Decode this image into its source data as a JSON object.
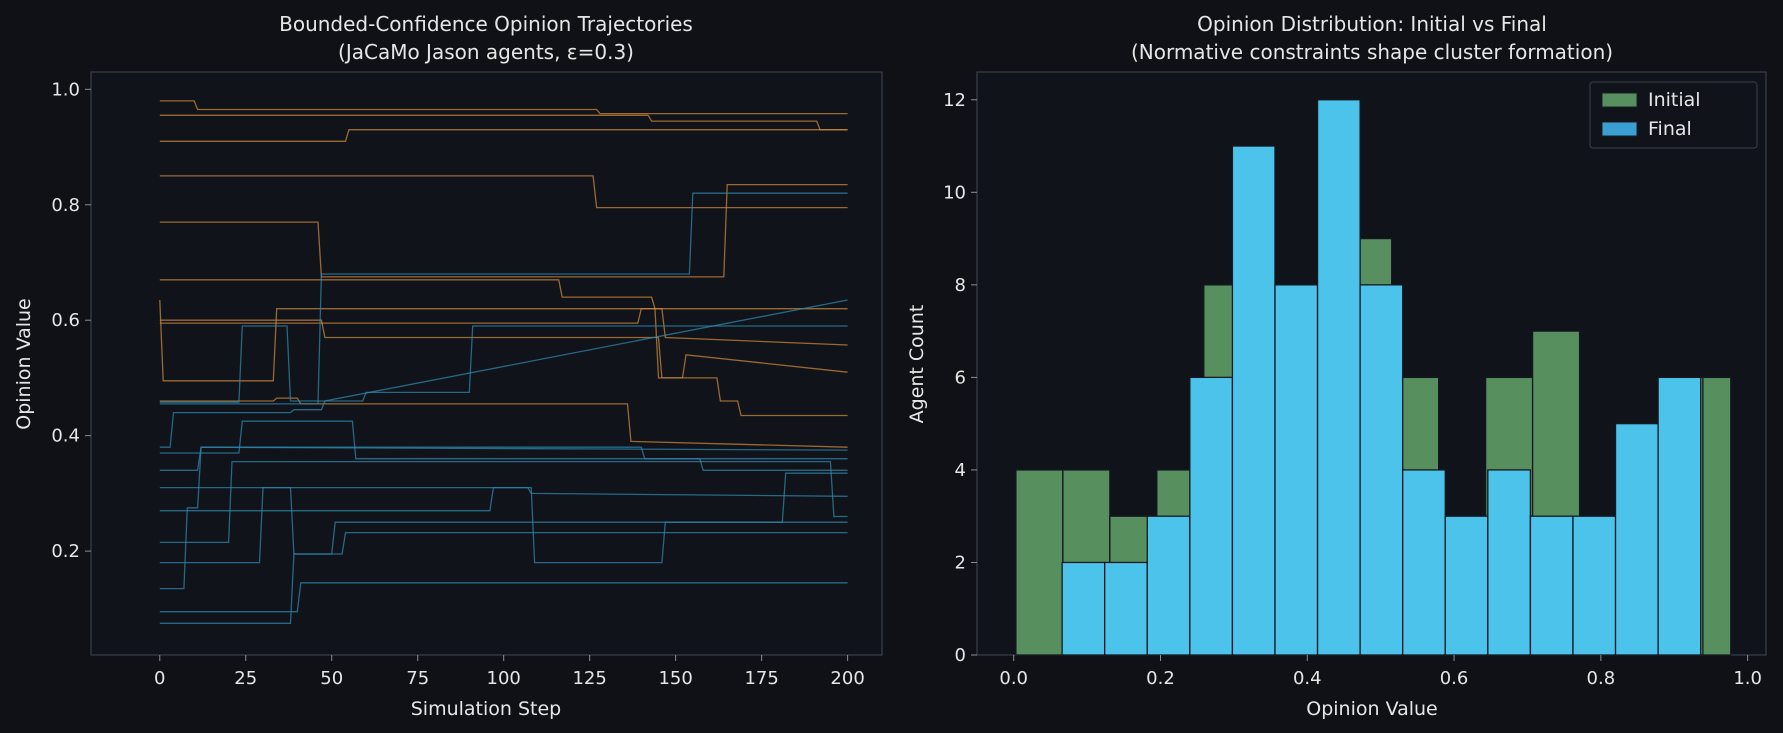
{
  "colors": {
    "background": "#0f1117",
    "axes_face": "#10131a",
    "spine": "#3a3f4b",
    "text": "#e6e6e6",
    "cluster_a": "#c8873a",
    "cluster_b": "#2e86ab",
    "initial": "#578f5e",
    "final": "#4cc3ea",
    "final_dark": "#3aa0d2"
  },
  "chart_data": [
    {
      "type": "line",
      "title": "Bounded-Confidence Opinion Trajectories",
      "subtitle": "(JaCaMo Jason agents, ε=0.3)",
      "xlabel": "Simulation Step",
      "ylabel": "Opinion Value",
      "xlim": [
        -20,
        210
      ],
      "ylim": [
        0.02,
        1.03
      ],
      "xticks": [
        0,
        25,
        50,
        75,
        100,
        125,
        150,
        175,
        200
      ],
      "yticks": [
        0.2,
        0.4,
        0.6,
        0.8,
        1.0
      ],
      "xtick_labels": [
        "0",
        "25",
        "50",
        "75",
        "100",
        "125",
        "150",
        "175",
        "200"
      ],
      "ytick_labels": [
        "0.2",
        "0.4",
        "0.6",
        "0.8",
        "1.0"
      ],
      "grid": false,
      "series": [
        {
          "group": "cluster_a",
          "points": [
            [
              0,
              0.98
            ],
            [
              10,
              0.98
            ],
            [
              11,
              0.965
            ],
            [
              127,
              0.965
            ],
            [
              128,
              0.958
            ],
            [
              200,
              0.958
            ]
          ]
        },
        {
          "group": "cluster_a",
          "points": [
            [
              0,
              0.955
            ],
            [
              142,
              0.955
            ],
            [
              143,
              0.945
            ],
            [
              191,
              0.945
            ],
            [
              192,
              0.93
            ],
            [
              200,
              0.93
            ]
          ]
        },
        {
          "group": "cluster_a",
          "points": [
            [
              0,
              0.91
            ],
            [
              54,
              0.91
            ],
            [
              55,
              0.93
            ],
            [
              200,
              0.93
            ]
          ]
        },
        {
          "group": "cluster_a",
          "points": [
            [
              0,
              0.85
            ],
            [
              126,
              0.85
            ],
            [
              127,
              0.795
            ],
            [
              166,
              0.795
            ],
            [
              167,
              0.795
            ],
            [
              200,
              0.795
            ]
          ]
        },
        {
          "group": "cluster_a",
          "points": [
            [
              0,
              0.77
            ],
            [
              46,
              0.77
            ],
            [
              47,
              0.675
            ],
            [
              164,
              0.675
            ],
            [
              165,
              0.835
            ],
            [
              191,
              0.835
            ],
            [
              192,
              0.835
            ],
            [
              200,
              0.835
            ]
          ]
        },
        {
          "group": "cluster_a",
          "points": [
            [
              0,
              0.67
            ],
            [
              116,
              0.67
            ],
            [
              117,
              0.64
            ],
            [
              143,
              0.64
            ],
            [
              144,
              0.62
            ],
            [
              146,
              0.62
            ],
            [
              147,
              0.57
            ],
            [
              200,
              0.557
            ]
          ]
        },
        {
          "group": "cluster_a",
          "points": [
            [
              0,
              0.635
            ],
            [
              1,
              0.495
            ],
            [
              33,
              0.495
            ],
            [
              34,
              0.62
            ],
            [
              200,
              0.62
            ]
          ]
        },
        {
          "group": "cluster_a",
          "points": [
            [
              0,
              0.6
            ],
            [
              47,
              0.6
            ],
            [
              48,
              0.57
            ],
            [
              145,
              0.57
            ],
            [
              146,
              0.5
            ],
            [
              152,
              0.5
            ],
            [
              153,
              0.54
            ],
            [
              200,
              0.51
            ]
          ]
        },
        {
          "group": "cluster_a",
          "points": [
            [
              0,
              0.595
            ],
            [
              139,
              0.595
            ],
            [
              140,
              0.62
            ],
            [
              144,
              0.62
            ],
            [
              145,
              0.5
            ],
            [
              162,
              0.5
            ],
            [
              163,
              0.46
            ],
            [
              168,
              0.46
            ],
            [
              169,
              0.435
            ],
            [
              200,
              0.435
            ]
          ]
        },
        {
          "group": "cluster_a",
          "points": [
            [
              0,
              0.46
            ],
            [
              33,
              0.46
            ],
            [
              34,
              0.465
            ],
            [
              40,
              0.465
            ],
            [
              41,
              0.455
            ],
            [
              136,
              0.455
            ],
            [
              137,
              0.39
            ],
            [
              200,
              0.38
            ]
          ]
        },
        {
          "group": "cluster_b",
          "points": [
            [
              0,
              0.458
            ],
            [
              23,
              0.458
            ],
            [
              24,
              0.59
            ],
            [
              37,
              0.59
            ],
            [
              38,
              0.46
            ],
            [
              59,
              0.46
            ],
            [
              60,
              0.475
            ],
            [
              90,
              0.475
            ],
            [
              91,
              0.59
            ],
            [
              200,
              0.59
            ]
          ]
        },
        {
          "group": "cluster_b",
          "points": [
            [
              0,
              0.455
            ],
            [
              46,
              0.455
            ],
            [
              47,
              0.68
            ],
            [
              116,
              0.68
            ],
            [
              117,
              0.68
            ],
            [
              154,
              0.68
            ],
            [
              155,
              0.82
            ],
            [
              200,
              0.82
            ]
          ]
        },
        {
          "group": "cluster_b",
          "points": [
            [
              0,
              0.38
            ],
            [
              3,
              0.38
            ],
            [
              4,
              0.44
            ],
            [
              38,
              0.44
            ],
            [
              39,
              0.445
            ],
            [
              47,
              0.445
            ],
            [
              48,
              0.46
            ],
            [
              200,
              0.635
            ]
          ]
        },
        {
          "group": "cluster_b",
          "points": [
            [
              0,
              0.37
            ],
            [
              23,
              0.37
            ],
            [
              24,
              0.425
            ],
            [
              56,
              0.425
            ],
            [
              57,
              0.36
            ],
            [
              200,
              0.36
            ]
          ]
        },
        {
          "group": "cluster_b",
          "points": [
            [
              0,
              0.34
            ],
            [
              11,
              0.34
            ],
            [
              12,
              0.38
            ],
            [
              140,
              0.38
            ],
            [
              141,
              0.36
            ],
            [
              157,
              0.36
            ],
            [
              158,
              0.34
            ],
            [
              200,
              0.34
            ]
          ]
        },
        {
          "group": "cluster_b",
          "points": [
            [
              0,
              0.31
            ],
            [
              107,
              0.31
            ],
            [
              108,
              0.3
            ],
            [
              200,
              0.295
            ]
          ]
        },
        {
          "group": "cluster_b",
          "points": [
            [
              0,
              0.27
            ],
            [
              96,
              0.27
            ],
            [
              97,
              0.31
            ],
            [
              108,
              0.31
            ],
            [
              109,
              0.18
            ],
            [
              146,
              0.18
            ],
            [
              147,
              0.25
            ],
            [
              181,
              0.25
            ],
            [
              182,
              0.335
            ],
            [
              200,
              0.335
            ]
          ]
        },
        {
          "group": "cluster_b",
          "points": [
            [
              0,
              0.215
            ],
            [
              20,
              0.215
            ],
            [
              21,
              0.355
            ],
            [
              195,
              0.355
            ],
            [
              196,
              0.26
            ],
            [
              200,
              0.26
            ]
          ]
        },
        {
          "group": "cluster_b",
          "points": [
            [
              0,
              0.18
            ],
            [
              29,
              0.18
            ],
            [
              30,
              0.31
            ],
            [
              38,
              0.31
            ],
            [
              39,
              0.195
            ],
            [
              53,
              0.195
            ],
            [
              54,
              0.232
            ],
            [
              200,
              0.232
            ]
          ]
        },
        {
          "group": "cluster_b",
          "points": [
            [
              0,
              0.135
            ],
            [
              7,
              0.135
            ],
            [
              8,
              0.275
            ],
            [
              11,
              0.275
            ],
            [
              12,
              0.38
            ],
            [
              200,
              0.375
            ]
          ]
        },
        {
          "group": "cluster_b",
          "points": [
            [
              0,
              0.095
            ],
            [
              40,
              0.095
            ],
            [
              41,
              0.145
            ],
            [
              200,
              0.145
            ]
          ]
        },
        {
          "group": "cluster_b",
          "points": [
            [
              0,
              0.075
            ],
            [
              38,
              0.075
            ],
            [
              39,
              0.195
            ],
            [
              50,
              0.195
            ],
            [
              51,
              0.25
            ],
            [
              200,
              0.25
            ]
          ]
        }
      ]
    },
    {
      "type": "bar",
      "title": "Opinion Distribution: Initial vs Final",
      "subtitle": "(Normative constraints shape cluster formation)",
      "xlabel": "Opinion Value",
      "ylabel": "Agent Count",
      "xlim": [
        -0.05,
        1.025
      ],
      "ylim": [
        0,
        12.6
      ],
      "xticks": [
        0.0,
        0.2,
        0.4,
        0.6,
        0.8,
        1.0
      ],
      "yticks": [
        0,
        2,
        4,
        6,
        8,
        10,
        12
      ],
      "xtick_labels": [
        "0.0",
        "0.2",
        "0.4",
        "0.6",
        "0.8",
        "1.0"
      ],
      "ytick_labels": [
        "0",
        "2",
        "4",
        "6",
        "8",
        "10",
        "12"
      ],
      "grid": false,
      "legend": {
        "position": "top-right",
        "entries": [
          "Initial",
          "Final"
        ]
      },
      "series": [
        {
          "name": "Initial",
          "bins": [
            [
              0.003,
              0.067,
              4
            ],
            [
              0.067,
              0.131,
              4
            ],
            [
              0.131,
              0.195,
              3
            ],
            [
              0.195,
              0.259,
              4
            ],
            [
              0.259,
              0.323,
              8
            ],
            [
              0.323,
              0.387,
              6
            ],
            [
              0.387,
              0.451,
              7
            ],
            [
              0.451,
              0.515,
              9
            ],
            [
              0.515,
              0.579,
              6
            ],
            [
              0.579,
              0.643,
              3
            ],
            [
              0.643,
              0.707,
              6
            ],
            [
              0.707,
              0.771,
              7
            ],
            [
              0.771,
              0.835,
              3
            ],
            [
              0.835,
              0.899,
              4
            ],
            [
              0.899,
              0.963,
              6
            ],
            [
              0.963,
              0.977,
              0
            ]
          ],
          "extra": [
            [
              0.939,
              0.977,
              6
            ]
          ]
        },
        {
          "name": "Final",
          "bins": [
            [
              0.066,
              0.124,
              2
            ],
            [
              0.124,
              0.182,
              2
            ],
            [
              0.182,
              0.24,
              3
            ],
            [
              0.24,
              0.298,
              6
            ],
            [
              0.298,
              0.356,
              11
            ],
            [
              0.356,
              0.414,
              8
            ],
            [
              0.414,
              0.472,
              12
            ],
            [
              0.472,
              0.53,
              8
            ],
            [
              0.53,
              0.588,
              4
            ],
            [
              0.588,
              0.646,
              3
            ],
            [
              0.646,
              0.704,
              4
            ],
            [
              0.704,
              0.762,
              3
            ],
            [
              0.762,
              0.82,
              3
            ],
            [
              0.82,
              0.878,
              5
            ],
            [
              0.878,
              0.936,
              6
            ]
          ]
        }
      ]
    }
  ]
}
